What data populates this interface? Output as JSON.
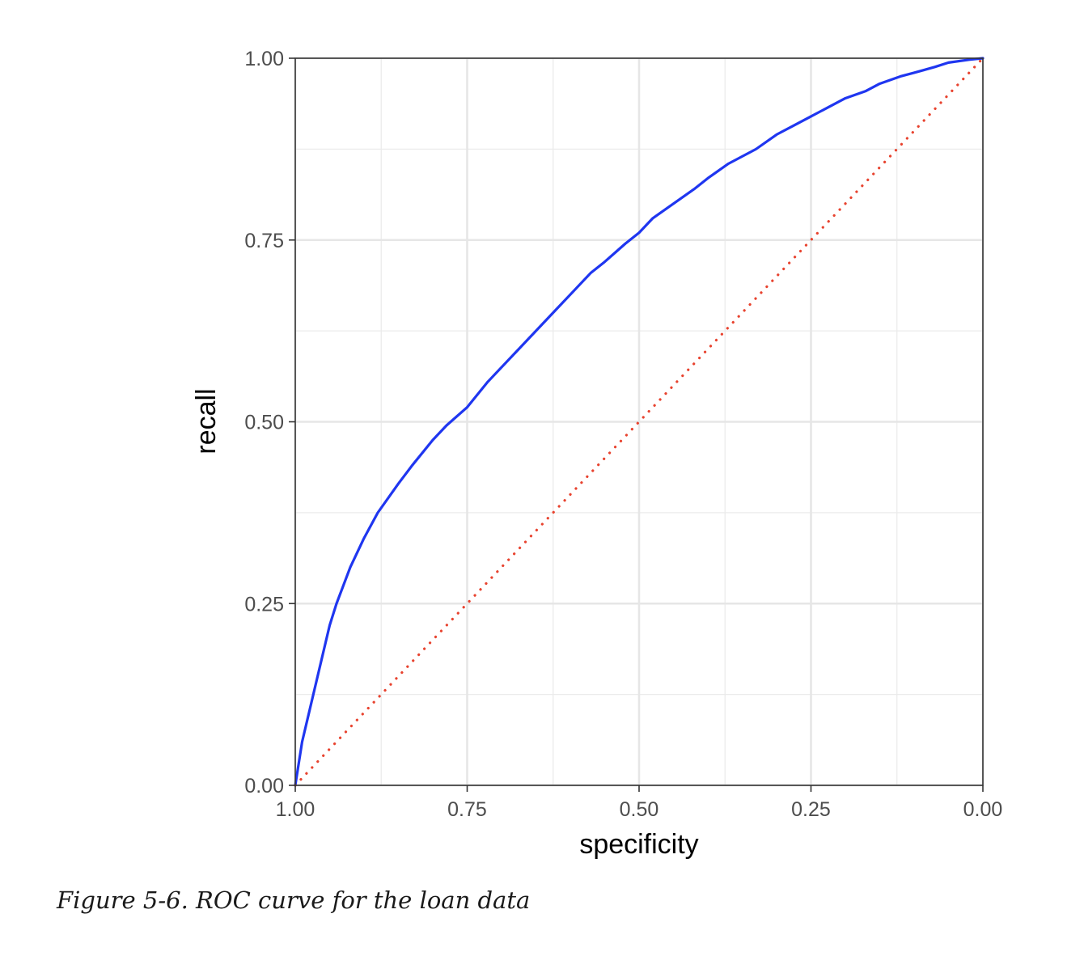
{
  "figure": {
    "caption": "Figure 5-6. ROC curve for the loan data"
  },
  "chart_data": {
    "type": "line",
    "xlabel": "specificity",
    "ylabel": "recall",
    "xlim": [
      1.0,
      0.0
    ],
    "ylim": [
      0.0,
      1.0
    ],
    "x_reversed": true,
    "x_ticks": [
      "1.00",
      "0.75",
      "0.50",
      "0.25",
      "0.00"
    ],
    "y_ticks": [
      "0.00",
      "0.25",
      "0.50",
      "0.75",
      "1.00"
    ],
    "grid": true,
    "legend": "none",
    "series": [
      {
        "style": "solid",
        "color": "#1f36f0",
        "x": [
          1.0,
          0.99,
          0.98,
          0.97,
          0.96,
          0.95,
          0.94,
          0.93,
          0.92,
          0.9,
          0.88,
          0.85,
          0.83,
          0.8,
          0.78,
          0.75,
          0.72,
          0.7,
          0.68,
          0.65,
          0.62,
          0.6,
          0.57,
          0.55,
          0.52,
          0.5,
          0.48,
          0.45,
          0.42,
          0.4,
          0.37,
          0.35,
          0.33,
          0.3,
          0.27,
          0.25,
          0.22,
          0.2,
          0.17,
          0.15,
          0.12,
          0.1,
          0.07,
          0.05,
          0.02,
          0.0
        ],
        "y": [
          0.0,
          0.06,
          0.1,
          0.14,
          0.18,
          0.22,
          0.25,
          0.275,
          0.3,
          0.34,
          0.375,
          0.415,
          0.44,
          0.475,
          0.495,
          0.52,
          0.555,
          0.575,
          0.595,
          0.625,
          0.655,
          0.675,
          0.705,
          0.72,
          0.745,
          0.76,
          0.78,
          0.8,
          0.82,
          0.835,
          0.855,
          0.865,
          0.875,
          0.895,
          0.91,
          0.92,
          0.935,
          0.945,
          0.955,
          0.965,
          0.975,
          0.98,
          0.988,
          0.994,
          0.998,
          1.0
        ]
      },
      {
        "style": "dotted",
        "color": "#e8432f",
        "x": [
          1.0,
          0.0
        ],
        "y": [
          0.0,
          1.0
        ]
      }
    ]
  }
}
